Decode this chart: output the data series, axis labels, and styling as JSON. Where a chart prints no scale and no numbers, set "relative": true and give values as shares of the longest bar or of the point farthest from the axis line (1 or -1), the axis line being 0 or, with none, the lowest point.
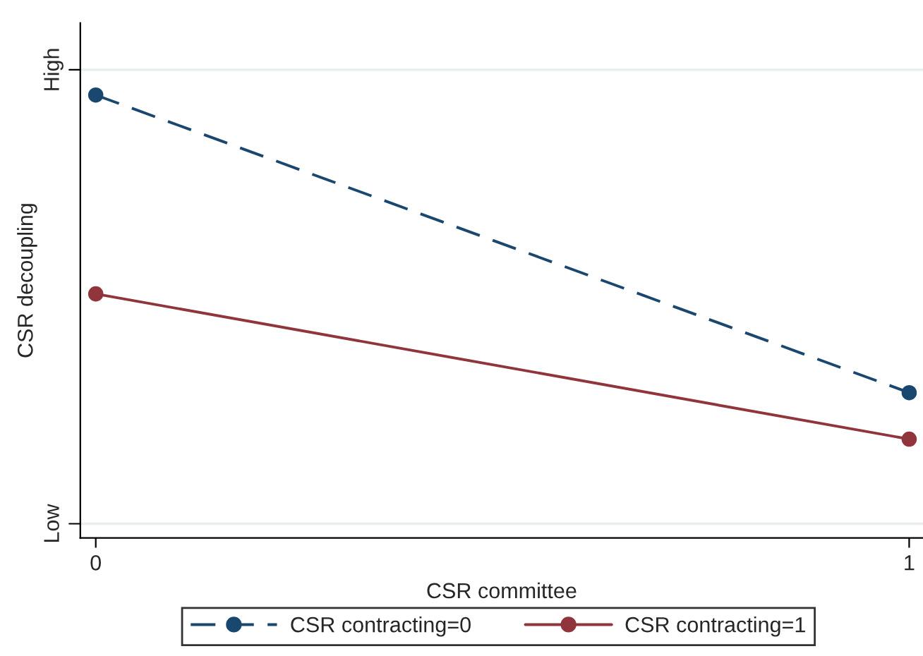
{
  "chart_data": {
    "type": "line",
    "xlabel": "CSR committee",
    "ylabel": "CSR decoupling",
    "relative": true,
    "x": [
      0,
      1
    ],
    "xlim": [
      -0.019,
      1.017
    ],
    "xticks": [
      0,
      1
    ],
    "series": [
      {
        "name": "CSR contracting=0",
        "color": "#1a476f",
        "values": [
          1,
          0.328
        ],
        "line_style": "dashed"
      },
      {
        "name": "CSR contracting=1",
        "color": "#90353b",
        "values": [
          0.551,
          0.223
        ],
        "line_style": "solid"
      }
    ],
    "ref_lines": [
      {
        "axis": "y",
        "value": 1.057,
        "label": "High",
        "color": "#e8eef0"
      },
      {
        "axis": "y",
        "value": 0.032,
        "label": "Low",
        "color": "#e8eef0"
      }
    ],
    "marker": "circle",
    "legend": "bottom"
  }
}
